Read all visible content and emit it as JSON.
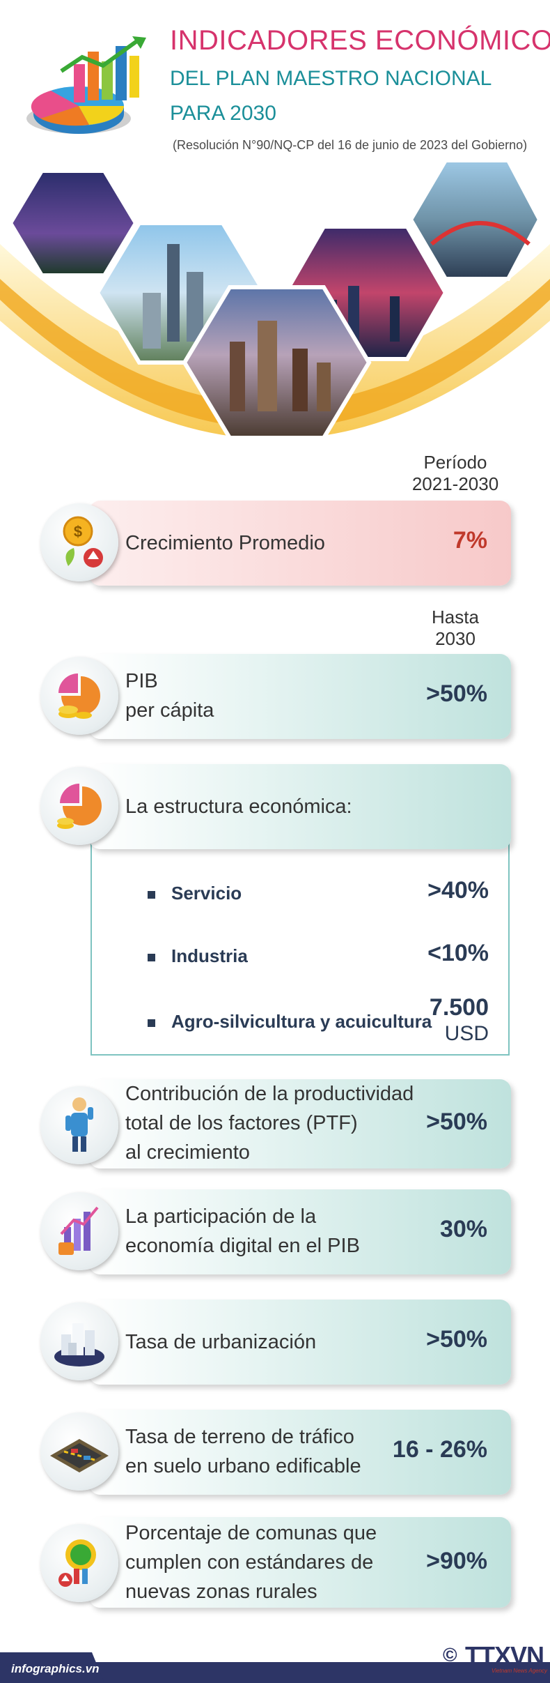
{
  "header": {
    "title_line1": "INDICADORES ECONÓMICOS",
    "title_line2": "DEL PLAN MAESTRO NACIONAL",
    "title_line3": "PARA 2030",
    "subtitle": "(Resolución N°90/NQ-CP del 16 de junio de 2023 del Gobierno)"
  },
  "period1": {
    "line1": "Período",
    "line2": "2021-2030"
  },
  "period2": {
    "line1": "Hasta",
    "line2": "2030"
  },
  "indicators": {
    "growth": {
      "label": "Crecimiento Promedio",
      "value": "7%",
      "icon": "money-growth-icon"
    },
    "gdp": {
      "label_line1": "PIB",
      "label_line2": "per cápita",
      "value": ">50%",
      "icon": "pie-coins-icon"
    },
    "structure": {
      "label": "La estructura económica:",
      "icon": "pie-chart-icon",
      "rows": [
        {
          "label": "Servicio",
          "value": ">40%"
        },
        {
          "label": "Industria",
          "value": "<10%"
        },
        {
          "label": "Agro-silvicultura y acuicultura",
          "value": "7.500",
          "value2": "USD"
        }
      ]
    },
    "tfp": {
      "line1": "Contribución de la productividad",
      "line2": "total de los factores (PTF)",
      "line3": "al crecimiento",
      "value": ">50%",
      "icon": "worker-icon"
    },
    "digital": {
      "line1": "La participación de la",
      "line2": "economía digital en el PIB",
      "value": "30%",
      "icon": "digital-chart-icon"
    },
    "urban": {
      "label": "Tasa de urbanización",
      "value": ">50%",
      "icon": "city-blocks-icon"
    },
    "traffic": {
      "line1": "Tasa de terreno de tráfico",
      "line2": "en suelo urbano edificable",
      "value": "16 - 26%",
      "icon": "road-icon"
    },
    "rural": {
      "line1": "Porcentaje de comunas que",
      "line2": "cumplen con estándares de",
      "line3": "nuevas zonas rurales",
      "value": ">90%",
      "icon": "rural-seal-icon"
    }
  },
  "footer": {
    "site": "infographics.vn",
    "copyright": "©",
    "agency": "TTXVN",
    "agency_sub": "Vietnam News Agency"
  }
}
